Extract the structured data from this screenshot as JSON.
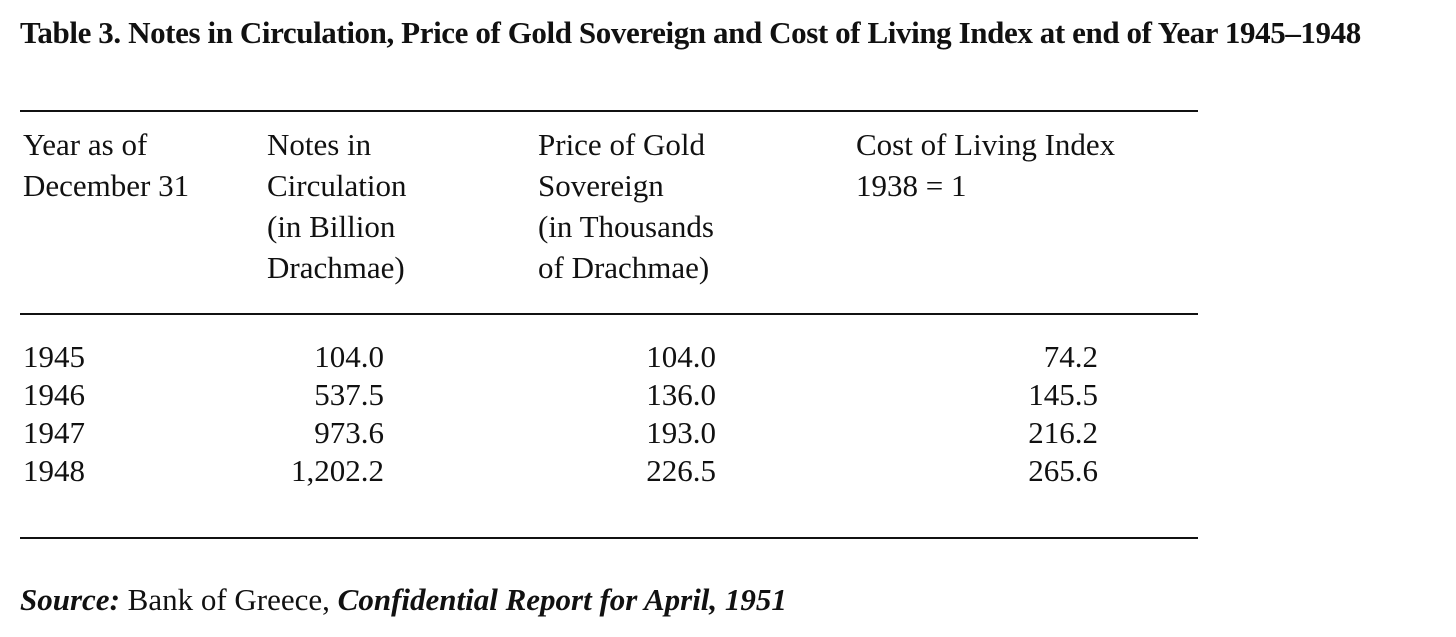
{
  "title": "Table 3. Notes in Circulation, Price of Gold Sovereign and Cost of Living Index at end of Year 1945–1948",
  "table": {
    "headers": [
      "Year as of\nDecember 31",
      "Notes in\nCirculation\n(in Billion\nDrachmae)",
      "Price of Gold\nSovereign\n(in Thousands\nof Drachmae)",
      "Cost of Living Index\n1938 = 1"
    ],
    "rows": [
      [
        "1945",
        "104.0",
        "104.0",
        "74.2"
      ],
      [
        "1946",
        "537.5",
        "136.0",
        "145.5"
      ],
      [
        "1947",
        "973.6",
        "193.0",
        "216.2"
      ],
      [
        "1948",
        "1,202.2",
        "226.5",
        "265.6"
      ]
    ]
  },
  "source": {
    "label": "Source:",
    "publisher": "Bank of Greece,",
    "report": "Confidential Report for April, 1951"
  }
}
